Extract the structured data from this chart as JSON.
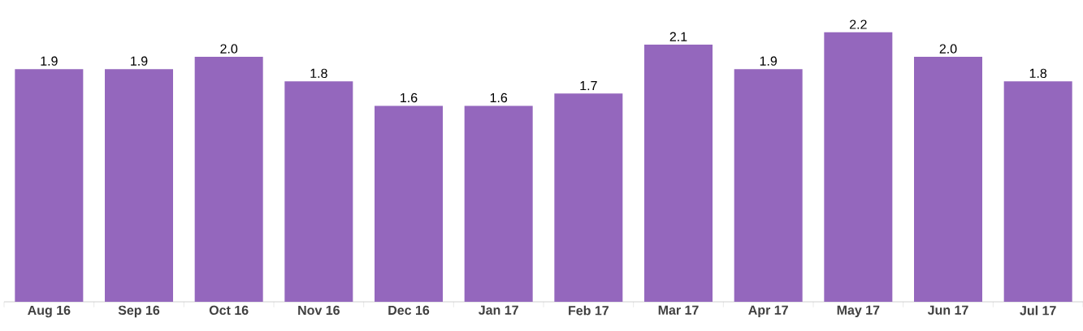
{
  "chart_data": {
    "type": "bar",
    "categories": [
      "Aug 16",
      "Sep 16",
      "Oct 16",
      "Nov 16",
      "Dec 16",
      "Jan 17",
      "Feb 17",
      "Mar 17",
      "Apr 17",
      "May 17",
      "Jun 17",
      "Jul 17"
    ],
    "values": [
      1.9,
      1.9,
      2.0,
      1.8,
      1.6,
      1.6,
      1.7,
      2.1,
      1.9,
      2.2,
      2.0,
      1.8
    ],
    "value_labels": [
      "1.9",
      "1.9",
      "2.0",
      "1.8",
      "1.6",
      "1.6",
      "1.7",
      "2.1",
      "1.9",
      "2.2",
      "2.0",
      "1.8"
    ],
    "color": "#9467bd"
  }
}
